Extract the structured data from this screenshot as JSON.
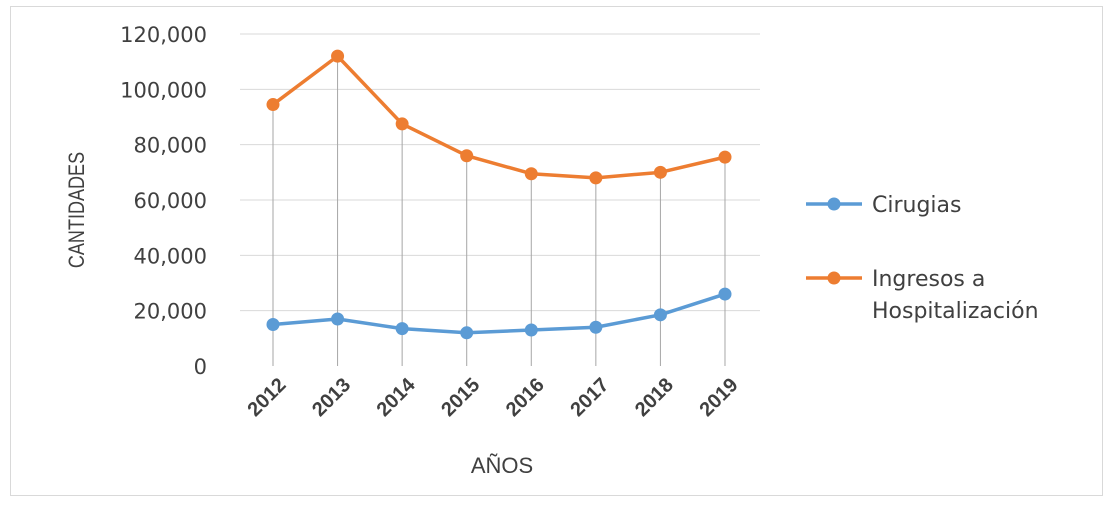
{
  "chart_data": {
    "type": "line",
    "title": "",
    "xlabel": "AÑOS",
    "ylabel": "CANTIDADES",
    "categories": [
      "2012",
      "2013",
      "2014",
      "2015",
      "2016",
      "2017",
      "2018",
      "2019"
    ],
    "ylim": [
      0,
      120000
    ],
    "yticks": [
      "0",
      "20,000",
      "40,000",
      "60,000",
      "80,000",
      "100,000",
      "120,000"
    ],
    "grid": true,
    "legend": "right",
    "series": [
      {
        "name": "Cirugias",
        "color": "#5b9bd5",
        "values": [
          15000,
          17000,
          13500,
          12000,
          13000,
          14000,
          18500,
          26000
        ]
      },
      {
        "name": "Ingresos a Hospitalización",
        "legend_lines": [
          "Ingresos a",
          "Hospitalización"
        ],
        "color": "#ed7d31",
        "values": [
          94500,
          112000,
          87500,
          76000,
          69500,
          68000,
          70000,
          75500
        ]
      }
    ]
  }
}
